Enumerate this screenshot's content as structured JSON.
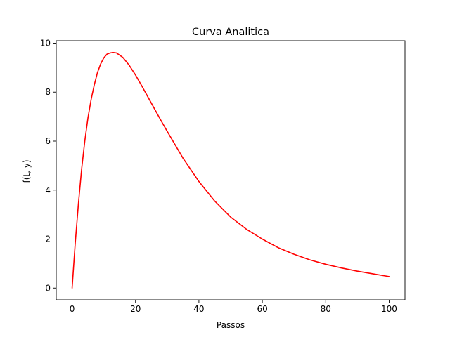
{
  "chart_data": {
    "type": "line",
    "title": "Curva Analitica",
    "xlabel": "Passos",
    "ylabel": "f(t, y)",
    "xlim": [
      -5,
      105
    ],
    "ylim": [
      -0.48,
      10.1
    ],
    "xticks": [
      "0",
      "20",
      "40",
      "60",
      "80",
      "100"
    ],
    "yticks": [
      "0",
      "2",
      "4",
      "6",
      "8",
      "10"
    ],
    "grid": false,
    "legend": "none",
    "series": [
      {
        "color": "#ff0000",
        "x": [
          0,
          1,
          2,
          3,
          4,
          5,
          6,
          7,
          8,
          9,
          10,
          11,
          12,
          13,
          14,
          16,
          18,
          20,
          22,
          25,
          28,
          30,
          35,
          40,
          45,
          50,
          55,
          60,
          65,
          70,
          75,
          80,
          85,
          90,
          95,
          100
        ],
        "y": [
          0.0,
          1.85,
          3.45,
          4.85,
          6.0,
          6.95,
          7.7,
          8.3,
          8.8,
          9.15,
          9.4,
          9.55,
          9.6,
          9.62,
          9.6,
          9.42,
          9.1,
          8.7,
          8.25,
          7.55,
          6.85,
          6.4,
          5.3,
          4.35,
          3.55,
          2.9,
          2.4,
          2.0,
          1.65,
          1.38,
          1.15,
          0.97,
          0.82,
          0.69,
          0.58,
          0.47
        ]
      }
    ]
  }
}
